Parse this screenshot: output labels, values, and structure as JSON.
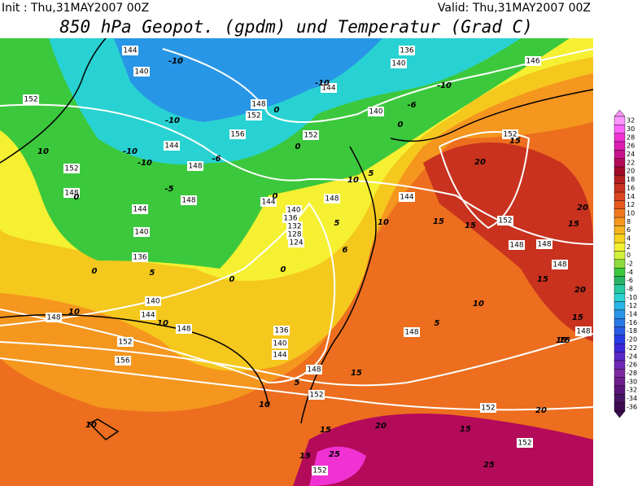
{
  "header": {
    "init": "Init : Thu,31MAY2007 00Z",
    "valid": "Valid: Thu,31MAY2007 00Z",
    "title": "850 hPa Geopot. (gpdm) und Temperatur (Grad C)"
  },
  "colorbar": {
    "levels": [
      32,
      30,
      28,
      26,
      24,
      22,
      20,
      18,
      16,
      14,
      12,
      10,
      8,
      6,
      4,
      2,
      0,
      -2,
      -4,
      -6,
      -8,
      -10,
      -12,
      -14,
      -16,
      -18,
      -20,
      -22,
      -24,
      -26,
      -28,
      -30,
      -32,
      -34,
      -36
    ],
    "colors": [
      "#ff96ff",
      "#ff64ff",
      "#f032d2",
      "#dc1eb4",
      "#c8148c",
      "#b40a5a",
      "#a00a28",
      "#b41e1e",
      "#c8321e",
      "#dc461e",
      "#e65a1e",
      "#f0781e",
      "#f5961e",
      "#f5b41e",
      "#f5d21e",
      "#f5f032",
      "#d2f03c",
      "#8cdc3c",
      "#3cc83c",
      "#28b464",
      "#28c8a0",
      "#28d2d2",
      "#28b4e6",
      "#2896e6",
      "#2878e6",
      "#285ae6",
      "#283ce6",
      "#3c28dc",
      "#5a28c8",
      "#6e28b4",
      "#7d28a0",
      "#6e1e8c",
      "#5a1478",
      "#461464",
      "#3c0a50"
    ]
  },
  "geopotential_labels": [
    144,
    140,
    136,
    146,
    152,
    140,
    148,
    152,
    156,
    144,
    140,
    152,
    144,
    148,
    152,
    148,
    148,
    144,
    148,
    144,
    152,
    144,
    140,
    140,
    136,
    132,
    128,
    124,
    136,
    140,
    144,
    148,
    148,
    152,
    156,
    136,
    140,
    144,
    148,
    152,
    148,
    148,
    148,
    152,
    148,
    148,
    152,
    152,
    152
  ],
  "temperature_labels": [
    -10,
    -10,
    -10,
    -6,
    -10,
    -10,
    -10,
    -6,
    -5,
    0,
    0,
    0,
    0,
    10,
    5,
    10,
    0,
    5,
    10,
    6,
    0,
    0,
    5,
    0,
    10,
    10,
    15,
    15,
    20,
    15,
    20,
    15,
    15,
    15,
    20,
    15,
    10,
    5,
    15,
    15,
    5,
    10,
    10,
    20,
    15,
    15,
    20,
    15,
    25,
    25
  ]
}
